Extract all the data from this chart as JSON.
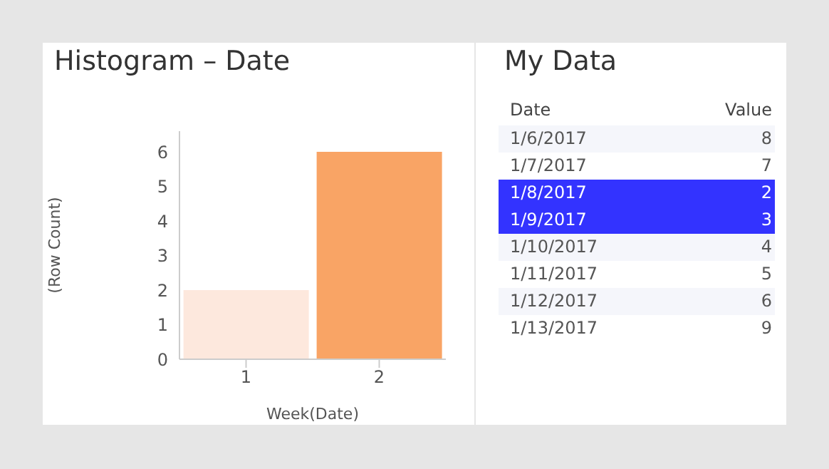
{
  "chart_data": [
    {
      "type": "bar",
      "title": "Histogram – Date",
      "xlabel": "Week(Date)",
      "ylabel": "(Row Count)",
      "categories": [
        "1",
        "2"
      ],
      "values": [
        2,
        6
      ],
      "colors": [
        "#fde8dd",
        "#f9a465"
      ],
      "ylim": [
        0,
        6.6
      ],
      "yticks": [
        0,
        1,
        2,
        3,
        4,
        5,
        6
      ],
      "grid": false,
      "legend": false
    },
    {
      "type": "other",
      "title": "My Data",
      "xlabel": "Date",
      "ylabel": "Value",
      "categories": [
        "1/6/2017",
        "1/7/2017",
        "1/8/2017",
        "1/9/2017",
        "1/10/2017",
        "1/11/2017",
        "1/12/2017",
        "1/13/2017"
      ],
      "values": [
        8,
        7,
        2,
        3,
        4,
        5,
        6,
        9
      ],
      "colors": [
        "#f5f6fb",
        "#ffffff",
        "#3333ff",
        "#3333ff",
        "#f5f6fb",
        "#ffffff",
        "#f5f6fb",
        "#ffffff"
      ],
      "data_labels": true
    }
  ]
}
